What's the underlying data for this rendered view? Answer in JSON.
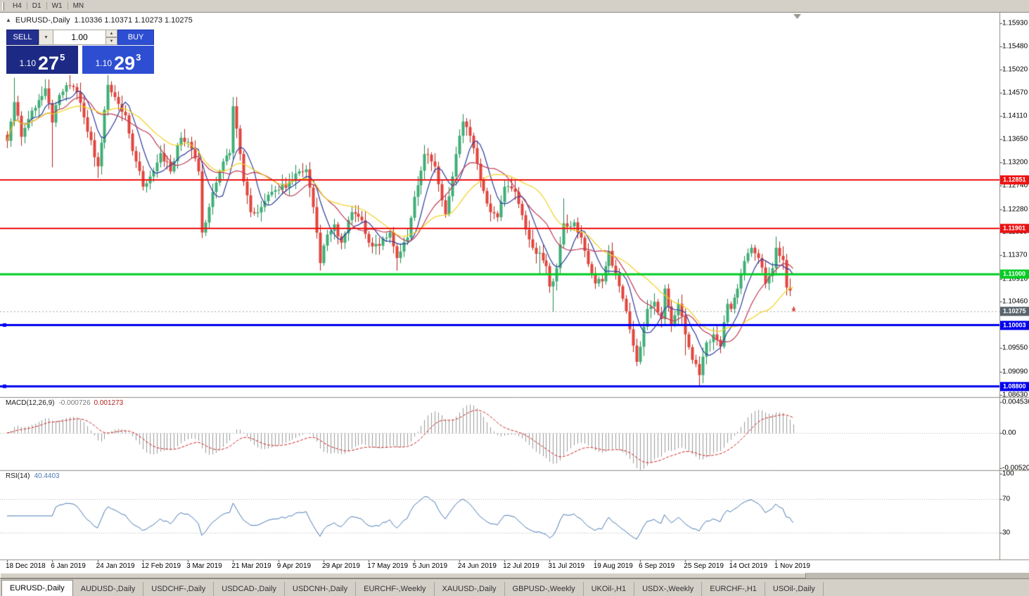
{
  "toolbar": {
    "timeframes": [
      "H4",
      "D1",
      "W1",
      "MN"
    ]
  },
  "icons": {
    "panel_toggle": "▲",
    "dropdown": "▼",
    "step_up": "▲",
    "step_down": "▼"
  },
  "chart": {
    "symbol_label": "EURUSD-,Daily",
    "ohlc_label": "1.10336 1.10371 1.10273 1.10275",
    "trade_panel": {
      "sell_label": "SELL",
      "buy_label": "BUY",
      "volume": "1.00",
      "sell_price": {
        "prefix": "1.10",
        "pips": "27",
        "pt": "5"
      },
      "buy_price": {
        "prefix": "1.10",
        "pips": "29",
        "pt": "3"
      }
    },
    "price_axis": [
      "1.15930",
      "1.15480",
      "1.15020",
      "1.14570",
      "1.14110",
      "1.13650",
      "1.13200",
      "1.12740",
      "1.12280",
      "1.11830",
      "1.11370",
      "1.10910",
      "1.10460",
      "1.09550",
      "1.09090",
      "1.08630"
    ],
    "date_axis": [
      "18 Dec 2018",
      "6 Jan 2019",
      "24 Jan 2019",
      "12 Feb 2019",
      "3 Mar 2019",
      "21 Mar 2019",
      "9 Apr 2019",
      "29 Apr 2019",
      "17 May 2019",
      "5 Jun 2019",
      "24 Jun 2019",
      "12 Jul 2019",
      "31 Jul 2019",
      "19 Aug 2019",
      "6 Sep 2019",
      "25 Sep 2019",
      "14 Oct 2019",
      "1 Nov 2019"
    ],
    "hlines": [
      {
        "price": 1.12851,
        "label": "1.12851",
        "color": "#ee1111",
        "width": 2,
        "handles": false
      },
      {
        "price": 1.11901,
        "label": "1.11901",
        "color": "#ee1111",
        "width": 2,
        "handles": false
      },
      {
        "price": 1.11,
        "label": "1.11000",
        "color": "#00cc22",
        "width": 3,
        "handles": false
      },
      {
        "price": 1.10003,
        "label": "1.10003",
        "color": "#0000ee",
        "width": 3,
        "handles": true
      },
      {
        "price": 1.088,
        "label": "1.08800",
        "color": "#0000ee",
        "width": 3,
        "handles": true
      }
    ],
    "current_price": "1.10275",
    "colors": {
      "bull": "#3fae76",
      "bull_border": "#1f8a52",
      "bear": "#e2453c",
      "bear_border": "#b2241c",
      "ma_fast": "#2c3a9e",
      "ma_mid": "#c13a55",
      "ma_slow": "#f2d21f",
      "macd_bar": "#9a9a9a",
      "macd_signal": "#cc2222",
      "rsi_line": "#4a7ab5",
      "tag_current": "#5a646d",
      "bid_line": "#aaaaaa"
    }
  },
  "indicators": {
    "macd": {
      "name": "MACD(12,26,9)",
      "value_main": "-0.000726",
      "value_signal": "0.001273",
      "axis": [
        "0.004536",
        "0.00",
        "-0.005205"
      ],
      "fast": 12,
      "slow": 26,
      "signal": 9
    },
    "rsi": {
      "name": "RSI(14)",
      "value": "40.4403",
      "axis": [
        "100",
        "70",
        "30"
      ],
      "levels": [
        70,
        30
      ],
      "period": 14
    }
  },
  "tabs": {
    "active": 0,
    "items": [
      "EURUSD-,Daily",
      "AUDUSD-,Daily",
      "USDCHF-,Daily",
      "USDCAD-,Daily",
      "USDCNH-,Daily",
      "EURCHF-,Weekly",
      "XAUUSD-,Daily",
      "GBPUSD-,Weekly",
      "UKOil-,H1",
      "USDX-,Weekly",
      "EURCHF-,H1",
      "USOil-,Daily"
    ]
  },
  "chart_data": {
    "type": "candlestick",
    "symbol": "EURUSD-",
    "timeframe": "Daily",
    "visible_price_range": [
      1.0863,
      1.1593
    ],
    "candle_count": 227,
    "current_candle": {
      "open": 1.10336,
      "high": 1.10371,
      "low": 1.10273,
      "close": 1.10275
    },
    "bid": "1.10275",
    "ask": "1.10293",
    "close_path_anchors": [
      [
        0,
        1.1362
      ],
      [
        2,
        1.1438
      ],
      [
        4,
        1.137
      ],
      [
        6,
        1.1405
      ],
      [
        9,
        1.1442
      ],
      [
        11,
        1.1465
      ],
      [
        13,
        1.1398
      ],
      [
        15,
        1.1452
      ],
      [
        18,
        1.147
      ],
      [
        20,
        1.1458
      ],
      [
        23,
        1.138
      ],
      [
        26,
        1.1312
      ],
      [
        29,
        1.1472
      ],
      [
        31,
        1.1448
      ],
      [
        34,
        1.1412
      ],
      [
        36,
        1.1342
      ],
      [
        39,
        1.1272
      ],
      [
        41,
        1.1292
      ],
      [
        44,
        1.1338
      ],
      [
        47,
        1.1302
      ],
      [
        50,
        1.1368
      ],
      [
        52,
        1.136
      ],
      [
        55,
        1.1302
      ],
      [
        56,
        1.1182
      ],
      [
        58,
        1.1232
      ],
      [
        61,
        1.1302
      ],
      [
        64,
        1.1338
      ],
      [
        65,
        1.143
      ],
      [
        66,
        1.1386
      ],
      [
        68,
        1.1282
      ],
      [
        70,
        1.1222
      ],
      [
        73,
        1.1232
      ],
      [
        76,
        1.1262
      ],
      [
        78,
        1.1266
      ],
      [
        81,
        1.1282
      ],
      [
        84,
        1.1302
      ],
      [
        86,
        1.1306
      ],
      [
        88,
        1.1232
      ],
      [
        90,
        1.1122
      ],
      [
        92,
        1.1178
      ],
      [
        94,
        1.1198
      ],
      [
        96,
        1.1162
      ],
      [
        99,
        1.1222
      ],
      [
        102,
        1.1206
      ],
      [
        104,
        1.1162
      ],
      [
        107,
        1.1156
      ],
      [
        110,
        1.1182
      ],
      [
        112,
        1.1132
      ],
      [
        115,
        1.1172
      ],
      [
        117,
        1.1252
      ],
      [
        120,
        1.1336
      ],
      [
        123,
        1.1312
      ],
      [
        126,
        1.1218
      ],
      [
        128,
        1.1292
      ],
      [
        130,
        1.1372
      ],
      [
        131,
        1.14
      ],
      [
        133,
        1.1372
      ],
      [
        136,
        1.1286
      ],
      [
        139,
        1.1222
      ],
      [
        141,
        1.1212
      ],
      [
        143,
        1.1272
      ],
      [
        146,
        1.1262
      ],
      [
        148,
        1.1216
      ],
      [
        151,
        1.1152
      ],
      [
        153,
        1.1142
      ],
      [
        155,
        1.1116
      ],
      [
        156,
        1.1076
      ],
      [
        157,
        1.1086
      ],
      [
        158,
        1.1112
      ],
      [
        160,
        1.12
      ],
      [
        163,
        1.1202
      ],
      [
        165,
        1.1172
      ],
      [
        168,
        1.1102
      ],
      [
        169,
        1.1082
      ],
      [
        171,
        1.1086
      ],
      [
        173,
        1.1146
      ],
      [
        175,
        1.1102
      ],
      [
        177,
        1.1052
      ],
      [
        179,
        1.0992
      ],
      [
        181,
        1.0928
      ],
      [
        184,
        1.1032
      ],
      [
        186,
        1.1046
      ],
      [
        188,
        1.1012
      ],
      [
        189,
        1.1072
      ],
      [
        191,
        1.1002
      ],
      [
        193,
        1.1042
      ],
      [
        195,
        1.0982
      ],
      [
        197,
        1.0932
      ],
      [
        199,
        1.0902
      ],
      [
        201,
        1.0966
      ],
      [
        203,
        1.0982
      ],
      [
        205,
        1.0958
      ],
      [
        207,
        1.1042
      ],
      [
        208,
        1.1032
      ],
      [
        210,
        1.1072
      ],
      [
        212,
        1.1126
      ],
      [
        214,
        1.1152
      ],
      [
        216,
        1.1132
      ],
      [
        218,
        1.1082
      ],
      [
        220,
        1.1112
      ],
      [
        221,
        1.1152
      ],
      [
        223,
        1.1128
      ],
      [
        224,
        1.1074
      ],
      [
        225,
        1.1068
      ],
      [
        226,
        1.10275
      ]
    ],
    "forced_highs": {
      "2": 1.1486,
      "11": 1.1483,
      "18": 1.1492,
      "29": 1.1498,
      "65": 1.1448,
      "120": 1.1348,
      "131": 1.1412,
      "160": 1.1249,
      "221": 1.1174
    },
    "forced_lows": {
      "13": 1.131,
      "26": 1.1289,
      "56": 1.1176,
      "90": 1.1111,
      "112": 1.1107,
      "153": 1.1101,
      "157": 1.1027,
      "181": 1.0926,
      "195": 1.0941,
      "199": 1.0879
    },
    "moving_averages": [
      {
        "period": 7,
        "color_key": "ma_fast"
      },
      {
        "period": 14,
        "color_key": "ma_mid"
      },
      {
        "period": 25,
        "color_key": "ma_slow"
      }
    ],
    "macd_axis_range": [
      -0.005205,
      0.004536
    ],
    "rsi_axis_range": [
      0,
      100
    ]
  }
}
